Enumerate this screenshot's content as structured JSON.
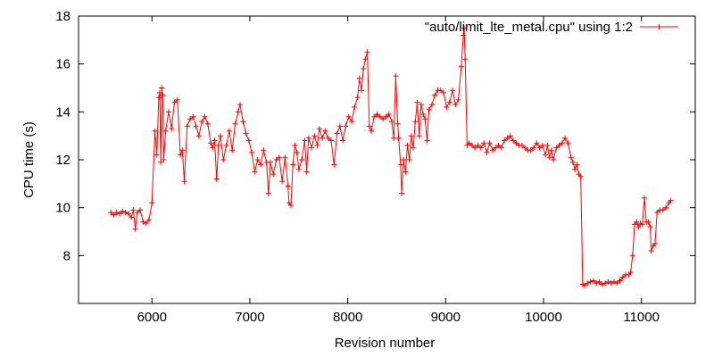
{
  "chart_data": {
    "type": "line",
    "xlabel": "Revision number",
    "ylabel": "CPU time (s)",
    "xlim": [
      5250,
      11550
    ],
    "ylim": [
      6,
      18
    ],
    "xticks": [
      6000,
      7000,
      8000,
      9000,
      10000,
      11000
    ],
    "yticks": [
      8,
      10,
      12,
      14,
      16,
      18
    ],
    "grid": false,
    "legend_position": "top-right",
    "series": [
      {
        "name": "\"auto/limit_lte_metal.cpu\" using 1:2",
        "color": "#ff0000",
        "marker": "plus",
        "points": [
          [
            5580,
            9.8
          ],
          [
            5610,
            9.7
          ],
          [
            5640,
            9.8
          ],
          [
            5670,
            9.75
          ],
          [
            5700,
            9.85
          ],
          [
            5730,
            9.8
          ],
          [
            5760,
            9.75
          ],
          [
            5790,
            9.6
          ],
          [
            5810,
            9.9
          ],
          [
            5830,
            9.1
          ],
          [
            5850,
            9.8
          ],
          [
            5880,
            9.9
          ],
          [
            5910,
            9.4
          ],
          [
            5940,
            9.35
          ],
          [
            5970,
            9.5
          ],
          [
            6000,
            10.2
          ],
          [
            6030,
            13.2
          ],
          [
            6050,
            12.2
          ],
          [
            6070,
            14.6
          ],
          [
            6080,
            14.8
          ],
          [
            6090,
            11.9
          ],
          [
            6100,
            15.0
          ],
          [
            6110,
            14.7
          ],
          [
            6120,
            12.0
          ],
          [
            6140,
            13.2
          ],
          [
            6170,
            14.0
          ],
          [
            6200,
            13.3
          ],
          [
            6230,
            14.4
          ],
          [
            6260,
            14.5
          ],
          [
            6290,
            12.2
          ],
          [
            6310,
            12.4
          ],
          [
            6330,
            11.1
          ],
          [
            6360,
            13.4
          ],
          [
            6390,
            13.7
          ],
          [
            6420,
            13.8
          ],
          [
            6450,
            13.4
          ],
          [
            6480,
            13.0
          ],
          [
            6510,
            13.6
          ],
          [
            6540,
            13.8
          ],
          [
            6570,
            13.5
          ],
          [
            6600,
            12.7
          ],
          [
            6620,
            12.5
          ],
          [
            6640,
            12.8
          ],
          [
            6660,
            11.2
          ],
          [
            6680,
            12.6
          ],
          [
            6700,
            13.0
          ],
          [
            6730,
            12.0
          ],
          [
            6760,
            12.6
          ],
          [
            6790,
            13.2
          ],
          [
            6820,
            12.4
          ],
          [
            6850,
            13.5
          ],
          [
            6880,
            14.0
          ],
          [
            6900,
            14.3
          ],
          [
            6930,
            13.6
          ],
          [
            6960,
            13.1
          ],
          [
            6990,
            12.8
          ],
          [
            7020,
            12.3
          ],
          [
            7050,
            11.5
          ],
          [
            7080,
            12.0
          ],
          [
            7110,
            11.8
          ],
          [
            7140,
            12.4
          ],
          [
            7170,
            11.9
          ],
          [
            7190,
            10.6
          ],
          [
            7210,
            11.9
          ],
          [
            7240,
            11.4
          ],
          [
            7270,
            12.0
          ],
          [
            7300,
            12.1
          ],
          [
            7330,
            11.1
          ],
          [
            7360,
            12.1
          ],
          [
            7390,
            10.9
          ],
          [
            7400,
            10.2
          ],
          [
            7420,
            10.1
          ],
          [
            7440,
            11.8
          ],
          [
            7460,
            12.6
          ],
          [
            7480,
            12.3
          ],
          [
            7500,
            11.6
          ],
          [
            7530,
            12.0
          ],
          [
            7560,
            12.8
          ],
          [
            7580,
            11.5
          ],
          [
            7600,
            12.9
          ],
          [
            7630,
            12.5
          ],
          [
            7660,
            13.0
          ],
          [
            7690,
            12.6
          ],
          [
            7710,
            13.3
          ],
          [
            7740,
            12.9
          ],
          [
            7770,
            13.2
          ],
          [
            7800,
            12.9
          ],
          [
            7830,
            12.8
          ],
          [
            7860,
            11.8
          ],
          [
            7890,
            13.1
          ],
          [
            7920,
            13.4
          ],
          [
            7950,
            12.8
          ],
          [
            7980,
            13.4
          ],
          [
            8010,
            13.8
          ],
          [
            8040,
            13.6
          ],
          [
            8070,
            14.2
          ],
          [
            8100,
            14.6
          ],
          [
            8120,
            15.4
          ],
          [
            8140,
            14.9
          ],
          [
            8160,
            15.8
          ],
          [
            8180,
            16.2
          ],
          [
            8200,
            16.5
          ],
          [
            8220,
            13.4
          ],
          [
            8240,
            13.2
          ],
          [
            8270,
            13.8
          ],
          [
            8300,
            13.9
          ],
          [
            8330,
            13.8
          ],
          [
            8360,
            13.7
          ],
          [
            8390,
            13.8
          ],
          [
            8420,
            13.9
          ],
          [
            8450,
            13.6
          ],
          [
            8470,
            12.9
          ],
          [
            8490,
            15.5
          ],
          [
            8510,
            13.5
          ],
          [
            8520,
            12.9
          ],
          [
            8540,
            11.8
          ],
          [
            8550,
            10.6
          ],
          [
            8570,
            12.0
          ],
          [
            8590,
            11.5
          ],
          [
            8610,
            12.6
          ],
          [
            8630,
            12.0
          ],
          [
            8650,
            13.0
          ],
          [
            8670,
            12.5
          ],
          [
            8690,
            13.6
          ],
          [
            8710,
            14.4
          ],
          [
            8730,
            13.0
          ],
          [
            8750,
            14.3
          ],
          [
            8770,
            13.9
          ],
          [
            8790,
            13.7
          ],
          [
            8810,
            12.8
          ],
          [
            8830,
            14.1
          ],
          [
            8860,
            14.3
          ],
          [
            8890,
            14.7
          ],
          [
            8920,
            14.9
          ],
          [
            8950,
            14.9
          ],
          [
            8980,
            14.8
          ],
          [
            9010,
            14.2
          ],
          [
            9040,
            14.4
          ],
          [
            9070,
            14.9
          ],
          [
            9100,
            14.3
          ],
          [
            9130,
            14.5
          ],
          [
            9160,
            15.9
          ],
          [
            9180,
            17.2
          ],
          [
            9190,
            17.5
          ],
          [
            9200,
            16.2
          ],
          [
            9220,
            12.6
          ],
          [
            9240,
            12.7
          ],
          [
            9270,
            12.6
          ],
          [
            9300,
            12.5
          ],
          [
            9330,
            12.6
          ],
          [
            9360,
            12.5
          ],
          [
            9390,
            12.7
          ],
          [
            9420,
            12.3
          ],
          [
            9450,
            12.7
          ],
          [
            9480,
            12.4
          ],
          [
            9510,
            12.5
          ],
          [
            9540,
            12.6
          ],
          [
            9570,
            12.5
          ],
          [
            9600,
            12.8
          ],
          [
            9630,
            12.9
          ],
          [
            9660,
            13.0
          ],
          [
            9690,
            12.8
          ],
          [
            9720,
            12.7
          ],
          [
            9750,
            12.6
          ],
          [
            9780,
            12.6
          ],
          [
            9810,
            12.5
          ],
          [
            9840,
            12.4
          ],
          [
            9870,
            12.4
          ],
          [
            9900,
            12.5
          ],
          [
            9930,
            12.7
          ],
          [
            9960,
            12.5
          ],
          [
            9990,
            12.6
          ],
          [
            10020,
            12.2
          ],
          [
            10040,
            12.6
          ],
          [
            10060,
            12.1
          ],
          [
            10080,
            12.4
          ],
          [
            10100,
            12.0
          ],
          [
            10130,
            12.5
          ],
          [
            10160,
            12.6
          ],
          [
            10190,
            12.7
          ],
          [
            10220,
            12.9
          ],
          [
            10250,
            12.7
          ],
          [
            10280,
            12.1
          ],
          [
            10300,
            11.9
          ],
          [
            10320,
            11.6
          ],
          [
            10340,
            11.8
          ],
          [
            10360,
            11.4
          ],
          [
            10380,
            11.3
          ],
          [
            10400,
            6.8
          ],
          [
            10420,
            6.75
          ],
          [
            10450,
            6.85
          ],
          [
            10480,
            6.9
          ],
          [
            10510,
            6.95
          ],
          [
            10540,
            6.85
          ],
          [
            10570,
            6.9
          ],
          [
            10600,
            6.8
          ],
          [
            10630,
            6.85
          ],
          [
            10660,
            6.9
          ],
          [
            10690,
            6.85
          ],
          [
            10720,
            6.9
          ],
          [
            10750,
            6.85
          ],
          [
            10780,
            6.95
          ],
          [
            10810,
            7.1
          ],
          [
            10840,
            7.2
          ],
          [
            10870,
            7.2
          ],
          [
            10890,
            7.3
          ],
          [
            10910,
            8.0
          ],
          [
            10930,
            9.3
          ],
          [
            10950,
            9.4
          ],
          [
            10970,
            9.2
          ],
          [
            10990,
            9.35
          ],
          [
            11010,
            9.3
          ],
          [
            11030,
            10.4
          ],
          [
            11050,
            9.4
          ],
          [
            11070,
            9.4
          ],
          [
            11090,
            9.2
          ],
          [
            11100,
            8.2
          ],
          [
            11120,
            8.4
          ],
          [
            11140,
            8.5
          ],
          [
            11160,
            9.8
          ],
          [
            11190,
            9.9
          ],
          [
            11220,
            9.9
          ],
          [
            11250,
            10.0
          ],
          [
            11280,
            10.2
          ],
          [
            11300,
            10.3
          ]
        ]
      }
    ]
  }
}
